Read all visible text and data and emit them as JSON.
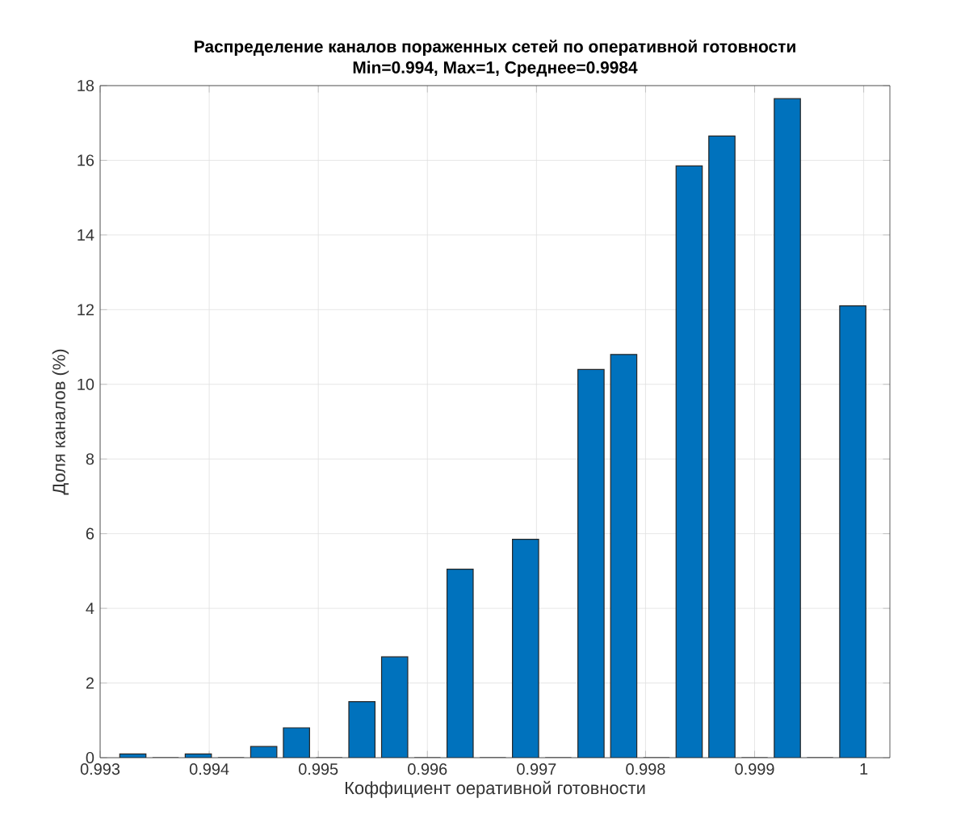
{
  "chart_data": {
    "type": "bar",
    "title": "Распределение каналов пораженных сетей по оперативной готовности",
    "subtitle": "Min=0.994, Max=1,  Среднее=0.9984",
    "xlabel": "Коффициент оеративной готовности",
    "ylabel": "Доля каналов (%)",
    "x": [
      0.9933,
      0.9936,
      0.9939,
      0.9942,
      0.9945,
      0.9948,
      0.9951,
      0.9954,
      0.9957,
      0.996,
      0.9963,
      0.9966,
      0.9969,
      0.9972,
      0.9975,
      0.9978,
      0.9981,
      0.9984,
      0.9987,
      0.999,
      0.9993,
      0.9996,
      0.9999
    ],
    "values": [
      0.1,
      0,
      0.1,
      0,
      0.3,
      0.8,
      0,
      1.5,
      2.7,
      0,
      5.05,
      0,
      5.85,
      0,
      10.4,
      10.8,
      0,
      15.85,
      16.65,
      0,
      17.65,
      0,
      12.1
    ],
    "color": "#0072bd",
    "xlim": [
      0.993,
      1.00024
    ],
    "xticks": [
      0.993,
      0.994,
      0.995,
      0.996,
      0.997,
      0.998,
      0.999,
      1
    ],
    "ylim": [
      0,
      18
    ],
    "yticks": [
      0,
      2,
      4,
      6,
      8,
      10,
      12,
      14,
      16,
      18
    ],
    "grid": true
  }
}
